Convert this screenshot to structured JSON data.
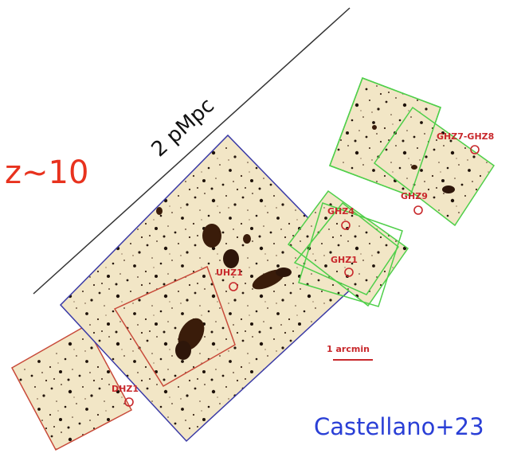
{
  "redshift_label": "z~10",
  "scale_bar_label": "2 pMpc",
  "arcmin_scale_label": "1 arcmin",
  "credit": "Castellano+23",
  "targets": {
    "ghz7_ghz8": "GHZ7-GHZ8",
    "ghz9": "GHZ9",
    "ghz4": "GHZ4",
    "ghz1": "GHZ1",
    "uhz1": "UHZ1",
    "dhz1": "DHZ1"
  },
  "colors": {
    "redshift_label": "#e8321e",
    "credit": "#2a3fd6",
    "target_label": "#c8282c",
    "blue_footprint": "#3a3aa6",
    "green_footprint": "#4fcf4a",
    "red_footprint": "#c84a3a",
    "sky_background": "#f2e6c6",
    "scale_line": "#333333"
  }
}
